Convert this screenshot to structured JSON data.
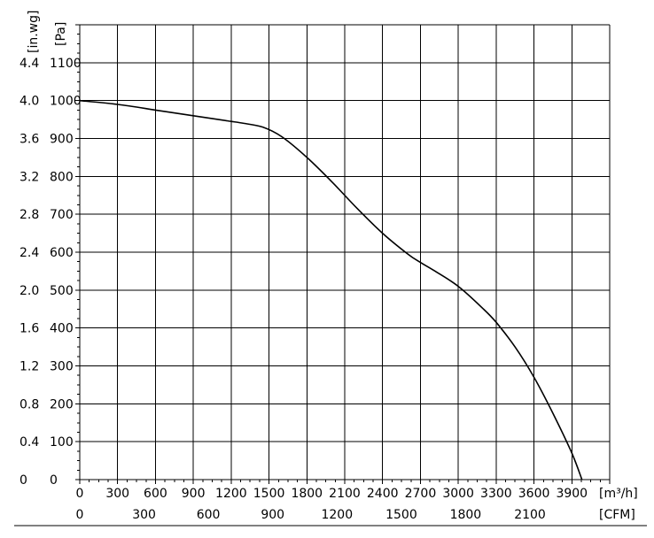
{
  "chart_data": {
    "type": "line",
    "x_unit_label": "[m³/h]",
    "x2_unit_label": "[CFM]",
    "y_left_unit_label": "[in.wg]",
    "y_right_unit_label": "[Pa]",
    "xlim": [
      0,
      4200
    ],
    "ylim": [
      0,
      1200
    ],
    "x_ticks": [
      0,
      300,
      600,
      900,
      1200,
      1500,
      1800,
      2100,
      2400,
      2700,
      3000,
      3300,
      3600,
      3900
    ],
    "x_tick_labels": [
      "0",
      "300",
      "600",
      "900",
      "1200",
      "1500",
      "1800",
      "2100",
      "2400",
      "2700",
      "3000",
      "3300",
      "3600",
      "3900"
    ],
    "x2_tick_values_m3h": [
      0,
      510,
      1019,
      1529,
      2039,
      2549,
      3058,
      3568
    ],
    "x2_tick_labels": [
      "0",
      "300",
      "600",
      "900",
      "1200",
      "1500",
      "1800",
      "2100"
    ],
    "y_ticks": [
      0,
      100,
      200,
      300,
      400,
      500,
      600,
      700,
      800,
      900,
      1000,
      1100
    ],
    "y_left_tick_labels": [
      "0",
      "0.4",
      "0.8",
      "1.2",
      "1.6",
      "2.0",
      "2.4",
      "2.8",
      "3.2",
      "3.6",
      "4.0",
      "4.4"
    ],
    "y_right_tick_labels": [
      "0",
      "100",
      "200",
      "300",
      "400",
      "500",
      "600",
      "700",
      "800",
      "900",
      "1000",
      "1100"
    ],
    "grid": true,
    "series": [
      {
        "x": [
          0,
          300,
          600,
          900,
          1100,
          1200,
          1300,
          1450,
          1600,
          1800,
          2000,
          2200,
          2400,
          2600,
          2700,
          2800,
          3000,
          3200,
          3300,
          3450,
          3600,
          3750,
          3900,
          3980
        ],
        "y": [
          1000,
          990,
          975,
          960,
          950,
          945,
          940,
          930,
          905,
          850,
          785,
          715,
          650,
          595,
          573,
          553,
          510,
          450,
          415,
          350,
          270,
          175,
          70,
          0
        ]
      }
    ]
  }
}
